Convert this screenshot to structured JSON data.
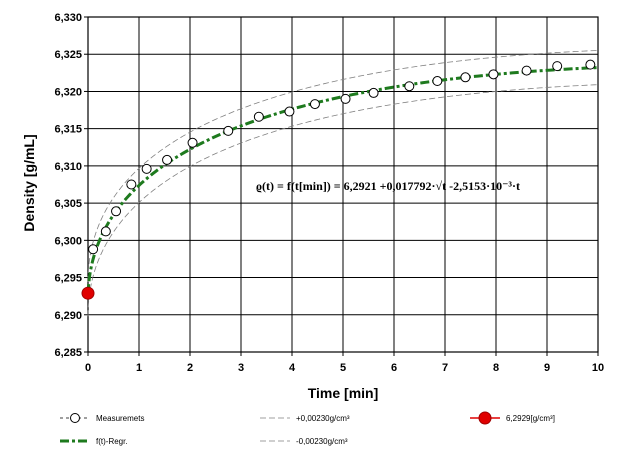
{
  "chart_data": {
    "type": "scatter",
    "xlabel": "Time [min]",
    "ylabel": "Density [g/mL]",
    "xlim": [
      0,
      10
    ],
    "ylim": [
      6.285,
      6.33
    ],
    "x_ticks": [
      "0",
      "1",
      "2",
      "3",
      "4",
      "5",
      "6",
      "7",
      "8",
      "9",
      "10"
    ],
    "y_ticks": [
      "6,285",
      "6,290",
      "6,295",
      "6,300",
      "6,305",
      "6,310",
      "6,315",
      "6,320",
      "6,325",
      "6,330"
    ],
    "grid": true,
    "annotation": "ϱ(t) = f(t[min]) = 6,2921 +0,017792·√t -2,5153·10⁻³·t",
    "series": [
      {
        "name": "Measuremets",
        "style": "open-circle",
        "color": "#000000",
        "x": [
          0.1,
          0.35,
          0.55,
          0.85,
          1.15,
          1.55,
          2.05,
          2.75,
          3.35,
          3.95,
          4.45,
          5.05,
          5.6,
          6.3,
          6.85,
          7.4,
          7.95,
          8.6,
          9.2,
          9.85
        ],
        "y": [
          6.2988,
          6.3012,
          6.3039,
          6.3075,
          6.3096,
          6.3108,
          6.3131,
          6.3147,
          6.3166,
          6.3173,
          6.3183,
          6.319,
          6.3198,
          6.3207,
          6.3214,
          6.3219,
          6.3223,
          6.3228,
          6.3234,
          6.3236
        ]
      },
      {
        "name": "f(t)-Regr.",
        "style": "dash-dot",
        "color": "#1e7a1e",
        "model": {
          "a": 6.2921,
          "b": 0.017792,
          "c": -0.0025153
        }
      },
      {
        "name": "+0,00230g/cm³",
        "style": "thin-dash",
        "color": "#808080",
        "offset": 0.0023
      },
      {
        "name": "-0,00230g/cm³",
        "style": "thin-dash",
        "color": "#808080",
        "offset": -0.0023
      },
      {
        "name": "6,2929[g/cm³]",
        "style": "filled-circle",
        "color": "#e00000",
        "x": [
          0
        ],
        "y": [
          6.2929
        ]
      }
    ]
  }
}
